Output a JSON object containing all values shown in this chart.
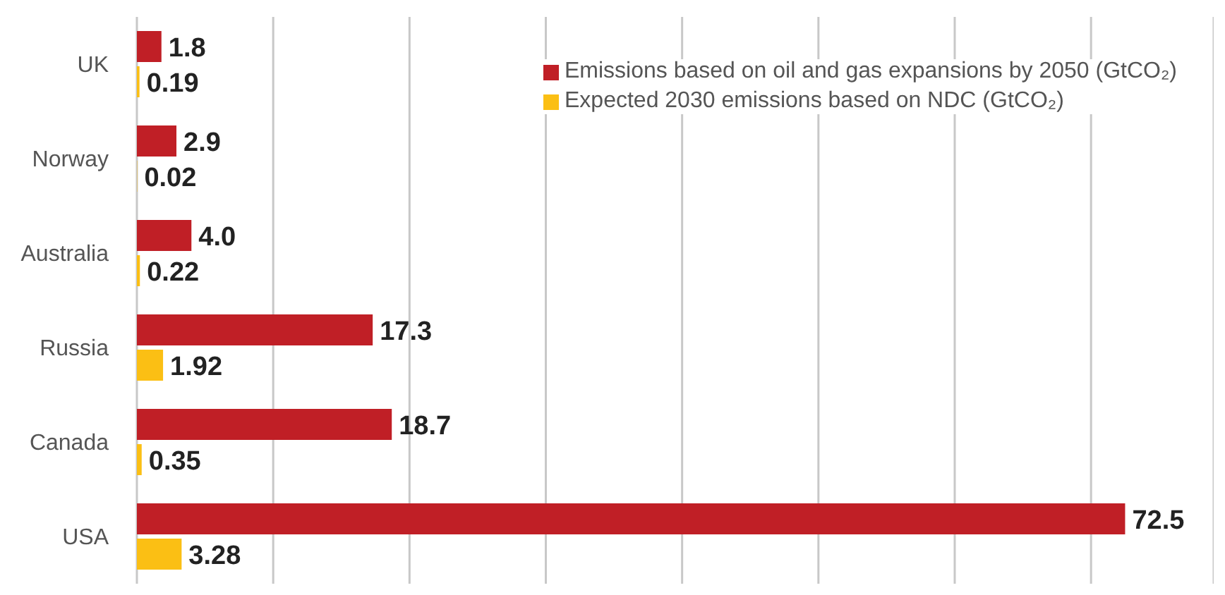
{
  "chart_data": {
    "type": "bar",
    "orientation": "horizontal",
    "categories": [
      "UK",
      "Norway",
      "Australia",
      "Russia",
      "Canada",
      "USA"
    ],
    "series": [
      {
        "name": "Emissions based on oil and gas expansions by 2050 (GtCO₂)",
        "color": "#c01f26",
        "values": [
          1.8,
          2.9,
          4.0,
          17.3,
          18.7,
          72.5
        ],
        "value_labels": [
          "1.8",
          "2.9",
          "4.0",
          "17.3",
          "18.7",
          "72.5"
        ]
      },
      {
        "name": "Expected 2030 emissions based on NDC (GtCO₂)",
        "color": "#fbbf14",
        "values": [
          0.19,
          0.02,
          0.22,
          1.92,
          0.35,
          3.28
        ],
        "value_labels": [
          "0.19",
          "0.02",
          "0.22",
          "1.92",
          "0.35",
          "3.28"
        ]
      }
    ],
    "xlim": [
      0,
      79
    ],
    "xticks": [
      {
        "value": 0,
        "label": null
      },
      {
        "value": 10,
        "label": null
      },
      {
        "value": 20,
        "label": null
      },
      {
        "value": 30,
        "label": null
      },
      {
        "value": 40,
        "label": null
      },
      {
        "value": 50,
        "label": null
      },
      {
        "value": 60,
        "label": null
      },
      {
        "value": 70,
        "label": null
      }
    ],
    "tick_labels": "y",
    "grid": "x",
    "legend": "top right"
  }
}
